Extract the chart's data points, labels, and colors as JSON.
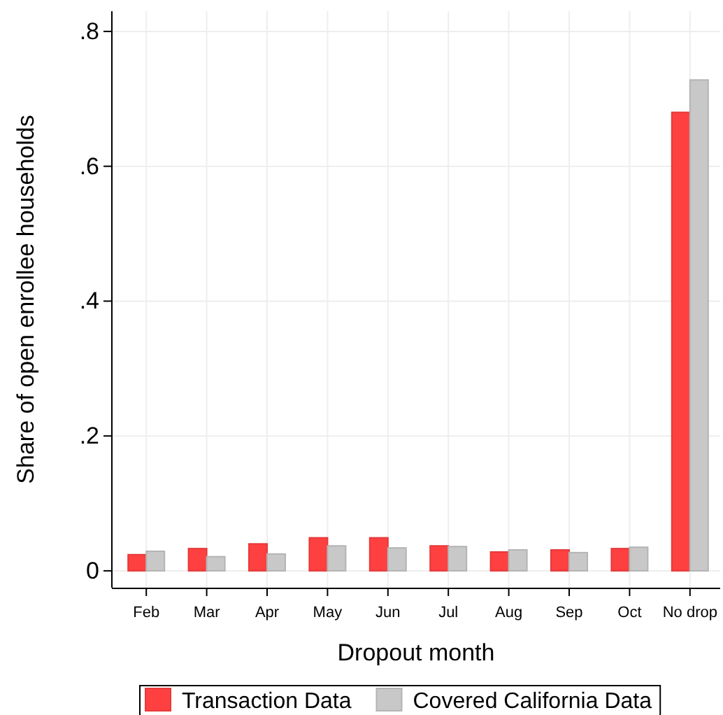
{
  "chart_data": {
    "type": "bar",
    "xlabel": "Dropout month",
    "ylabel": "Share of open enrollee households",
    "categories": [
      "Feb",
      "Mar",
      "Apr",
      "May",
      "Jun",
      "Jul",
      "Aug",
      "Sep",
      "Oct",
      "No drop"
    ],
    "series": [
      {
        "name": "Transaction Data",
        "color": "#ff4040",
        "values": [
          0.024,
          0.033,
          0.04,
          0.049,
          0.049,
          0.037,
          0.028,
          0.031,
          0.033,
          0.68
        ]
      },
      {
        "name": "Covered California Data",
        "color": "#c8c8c8",
        "values": [
          0.029,
          0.021,
          0.025,
          0.037,
          0.034,
          0.036,
          0.031,
          0.027,
          0.035,
          0.728
        ]
      }
    ],
    "ylim": [
      -0.025,
      0.83
    ],
    "yticks": [
      {
        "value": 0,
        "label": "0"
      },
      {
        "value": 0.2,
        "label": ".2"
      },
      {
        "value": 0.4,
        "label": ".4"
      },
      {
        "value": 0.6,
        "label": ".6"
      },
      {
        "value": 0.8,
        "label": ".8"
      }
    ],
    "grid": true,
    "legend": "bottom"
  }
}
